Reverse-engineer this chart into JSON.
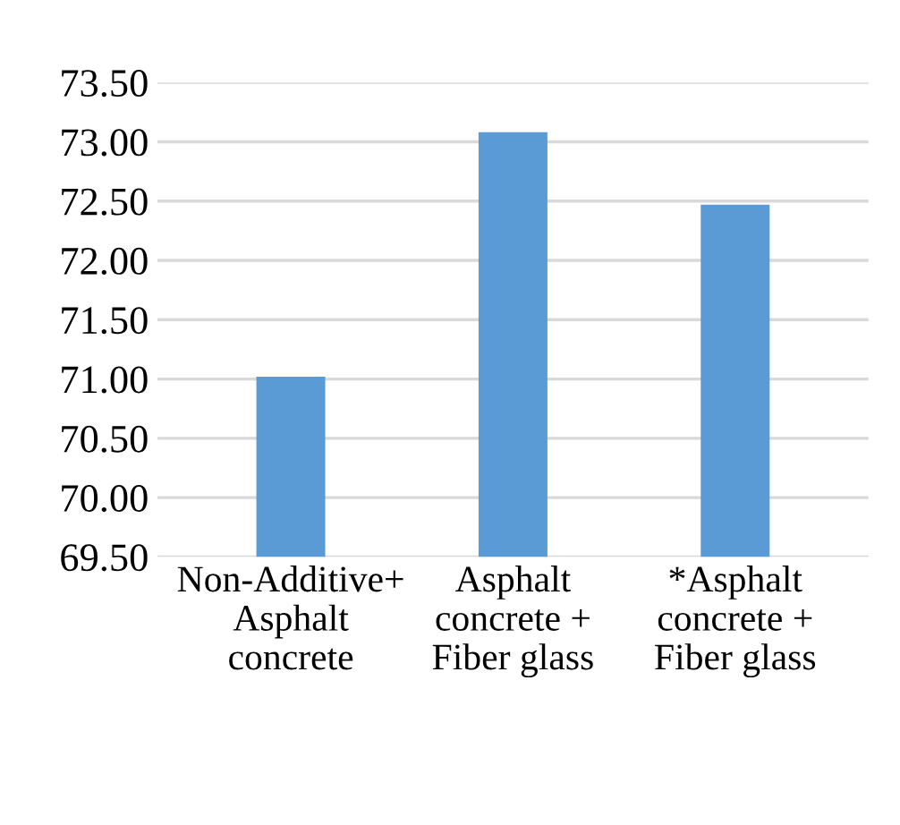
{
  "chart_data": {
    "type": "bar",
    "categories": [
      "Non-Additive+\nAsphalt\nconcrete",
      "Asphalt\nconcrete +\nFiber glass",
      "*Asphalt\nconcrete +\nFiber glass"
    ],
    "values": [
      71.02,
      73.08,
      72.47
    ],
    "color": "#5b9bd5",
    "ylim": [
      69.5,
      73.5
    ],
    "yticks": [
      {
        "value": 69.5,
        "label": "69.50"
      },
      {
        "value": 70,
        "label": "70.00"
      },
      {
        "value": 70.5,
        "label": "70.50"
      },
      {
        "value": 71,
        "label": "71.00"
      },
      {
        "value": 71.5,
        "label": "71.50"
      },
      {
        "value": 72,
        "label": "72.00"
      },
      {
        "value": 72.5,
        "label": "72.50"
      },
      {
        "value": 73,
        "label": "73.00"
      },
      {
        "value": 73.5,
        "label": "73.50"
      }
    ],
    "grid": "y",
    "legend": false
  }
}
